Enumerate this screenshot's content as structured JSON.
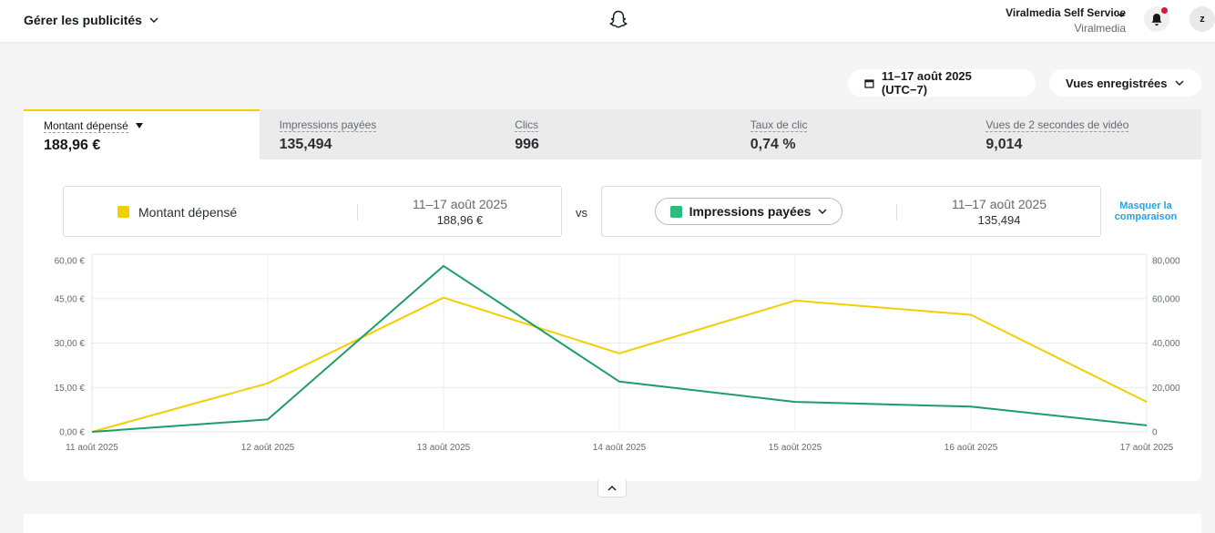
{
  "header": {
    "manage_ads_label": "Gérer les publicités",
    "account_name": "Viralmedia Self Service",
    "account_org": "Viralmedia",
    "avatar_letter": "z"
  },
  "toolbar": {
    "date_range": "11–17 août 2025 (UTC−7)",
    "saved_views": "Vues enregistrées"
  },
  "tabs": [
    {
      "label": "Montant dépensé",
      "value": "188,96 €"
    },
    {
      "label": "Impressions payées",
      "value": "135,494"
    },
    {
      "label": "Clics",
      "value": "996"
    },
    {
      "label": "Taux de clic",
      "value": "0,74 %"
    },
    {
      "label": "Vues de 2 secondes de vidéo",
      "value": "9,014"
    }
  ],
  "compare": {
    "left": {
      "metric": "Montant dépensé",
      "range": "11–17 août 2025",
      "value": "188,96 €",
      "color": "#f2cf00"
    },
    "vs": "vs",
    "right": {
      "metric": "Impressions payées",
      "range": "11–17 août 2025",
      "value": "135,494",
      "color": "#2dbb7f"
    },
    "hide_label": "Masquer la comparaison"
  },
  "chart_data": {
    "type": "line",
    "categories": [
      "11 août 2025",
      "12 août 2025",
      "13 août 2025",
      "14 août 2025",
      "15 août 2025",
      "16 août 2025",
      "17 août 2025"
    ],
    "left_axis": {
      "ticks": [
        "0,00 €",
        "15,00 €",
        "30,00 €",
        "45,00 €",
        "60,00 €"
      ],
      "ylim": [
        0,
        60
      ]
    },
    "right_axis": {
      "ticks": [
        "0",
        "20,000",
        "40,000",
        "60,000",
        "80,000"
      ],
      "ylim": [
        0,
        80000
      ]
    },
    "series": [
      {
        "name": "Montant dépensé",
        "axis": "left",
        "color": "#f2cf00",
        "values": [
          0.0,
          17.0,
          47.0,
          27.5,
          46.0,
          41.0,
          10.5
        ]
      },
      {
        "name": "Impressions payées",
        "axis": "right",
        "color": "#1e9c6a",
        "values": [
          0,
          5800,
          77500,
          23500,
          14000,
          11800,
          3000
        ]
      }
    ],
    "grid": true
  }
}
